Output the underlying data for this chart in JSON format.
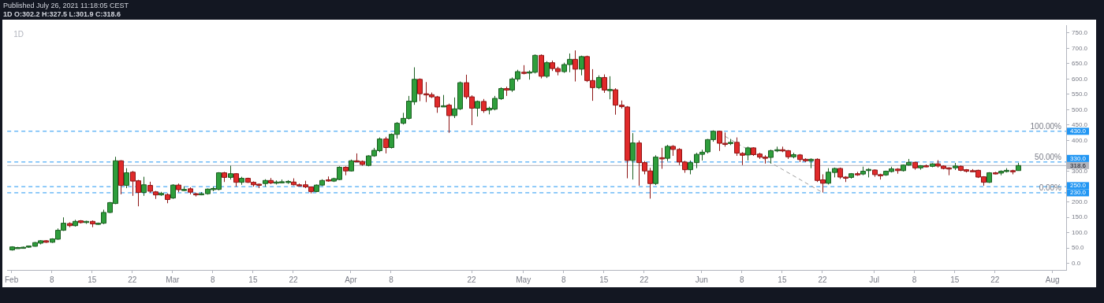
{
  "chart_data": {
    "type": "candlestick",
    "title": "1D",
    "annotations": [
      "Published July 26, 2021 11:18:05 CEST",
      "1D O:302.2 H:327.5 L:301.9 C:318.6",
      {
        "text": "100.00%",
        "y": 430
      },
      {
        "text": "50.00%",
        "y": 330
      },
      {
        "text": "0.00%",
        "y": 230
      }
    ],
    "x": [
      "2021-02-01",
      "2021-02-02",
      "2021-02-03",
      "2021-02-04",
      "2021-02-05",
      "2021-02-06",
      "2021-02-07",
      "2021-02-08",
      "2021-02-09",
      "2021-02-10",
      "2021-02-11",
      "2021-02-12",
      "2021-02-13",
      "2021-02-14",
      "2021-02-15",
      "2021-02-16",
      "2021-02-17",
      "2021-02-18",
      "2021-02-19",
      "2021-02-20",
      "2021-02-21",
      "2021-02-22",
      "2021-02-23",
      "2021-02-24",
      "2021-02-25",
      "2021-02-26",
      "2021-02-27",
      "2021-02-28",
      "2021-03-01",
      "2021-03-02",
      "2021-03-03",
      "2021-03-04",
      "2021-03-05",
      "2021-03-06",
      "2021-03-07",
      "2021-03-08",
      "2021-03-09",
      "2021-03-10",
      "2021-03-11",
      "2021-03-12",
      "2021-03-13",
      "2021-03-14",
      "2021-03-15",
      "2021-03-16",
      "2021-03-17",
      "2021-03-18",
      "2021-03-19",
      "2021-03-20",
      "2021-03-21",
      "2021-03-22",
      "2021-03-23",
      "2021-03-24",
      "2021-03-25",
      "2021-03-26",
      "2021-03-27",
      "2021-03-28",
      "2021-03-29",
      "2021-03-30",
      "2021-03-31",
      "2021-04-01",
      "2021-04-02",
      "2021-04-03",
      "2021-04-04",
      "2021-04-05",
      "2021-04-06",
      "2021-04-07",
      "2021-04-08",
      "2021-04-09",
      "2021-04-10",
      "2021-04-11",
      "2021-04-12",
      "2021-04-13",
      "2021-04-14",
      "2021-04-15",
      "2021-04-16",
      "2021-04-17",
      "2021-04-18",
      "2021-04-19",
      "2021-04-20",
      "2021-04-21",
      "2021-04-22",
      "2021-04-23",
      "2021-04-24",
      "2021-04-25",
      "2021-04-26",
      "2021-04-27",
      "2021-04-28",
      "2021-04-29",
      "2021-04-30",
      "2021-05-01",
      "2021-05-02",
      "2021-05-03",
      "2021-05-04",
      "2021-05-05",
      "2021-05-06",
      "2021-05-07",
      "2021-05-08",
      "2021-05-09",
      "2021-05-10",
      "2021-05-11",
      "2021-05-12",
      "2021-05-13",
      "2021-05-14",
      "2021-05-15",
      "2021-05-16",
      "2021-05-17",
      "2021-05-18",
      "2021-05-19",
      "2021-05-20",
      "2021-05-21",
      "2021-05-22",
      "2021-05-23",
      "2021-05-24",
      "2021-05-25",
      "2021-05-26",
      "2021-05-27",
      "2021-05-28",
      "2021-05-29",
      "2021-05-30",
      "2021-05-31",
      "2021-06-01",
      "2021-06-02",
      "2021-06-03",
      "2021-06-04",
      "2021-06-05",
      "2021-06-06",
      "2021-06-07",
      "2021-06-08",
      "2021-06-09",
      "2021-06-10",
      "2021-06-11",
      "2021-06-12",
      "2021-06-13",
      "2021-06-14",
      "2021-06-15",
      "2021-06-16",
      "2021-06-17",
      "2021-06-18",
      "2021-06-19",
      "2021-06-20",
      "2021-06-21",
      "2021-06-22",
      "2021-06-23",
      "2021-06-24",
      "2021-06-25",
      "2021-06-26",
      "2021-06-27",
      "2021-06-28",
      "2021-06-29",
      "2021-06-30",
      "2021-07-01",
      "2021-07-02",
      "2021-07-03",
      "2021-07-04",
      "2021-07-05",
      "2021-07-06",
      "2021-07-07",
      "2021-07-08",
      "2021-07-09",
      "2021-07-10",
      "2021-07-11",
      "2021-07-12",
      "2021-07-13",
      "2021-07-14",
      "2021-07-15",
      "2021-07-16",
      "2021-07-17",
      "2021-07-18",
      "2021-07-19",
      "2021-07-20",
      "2021-07-21",
      "2021-07-22",
      "2021-07-23",
      "2021-07-24",
      "2021-07-25",
      "2021-07-26"
    ],
    "ohlc": [
      [
        44,
        56,
        42,
        54
      ],
      [
        50,
        54,
        49,
        52
      ],
      [
        51,
        55,
        50,
        53
      ],
      [
        53,
        58,
        51,
        57
      ],
      [
        56,
        70,
        55,
        68
      ],
      [
        66,
        76,
        62,
        74
      ],
      [
        74,
        76,
        67,
        69
      ],
      [
        69,
        82,
        67,
        80
      ],
      [
        79,
        114,
        77,
        108
      ],
      [
        108,
        150,
        106,
        131
      ],
      [
        130,
        134,
        118,
        123
      ],
      [
        123,
        142,
        120,
        137
      ],
      [
        139,
        141,
        130,
        133
      ],
      [
        134,
        139,
        129,
        137
      ],
      [
        137,
        140,
        118,
        129
      ],
      [
        130,
        133,
        126,
        131
      ],
      [
        131,
        175,
        128,
        166
      ],
      [
        166,
        200,
        164,
        198
      ],
      [
        195,
        347,
        193,
        334
      ],
      [
        334,
        336,
        225,
        254
      ],
      [
        254,
        310,
        245,
        295
      ],
      [
        297,
        301,
        220,
        268
      ],
      [
        269,
        272,
        186,
        231
      ],
      [
        231,
        282,
        220,
        256
      ],
      [
        254,
        266,
        230,
        235
      ],
      [
        233,
        236,
        210,
        223
      ],
      [
        223,
        233,
        220,
        228
      ],
      [
        224,
        228,
        196,
        208
      ],
      [
        213,
        258,
        210,
        255
      ],
      [
        255,
        260,
        232,
        240
      ],
      [
        240,
        251,
        236,
        241
      ],
      [
        243,
        248,
        225,
        232
      ],
      [
        227,
        230,
        218,
        226
      ],
      [
        226,
        232,
        222,
        227
      ],
      [
        227,
        244,
        224,
        242
      ],
      [
        243,
        250,
        235,
        244
      ],
      [
        241,
        297,
        238,
        295
      ],
      [
        295,
        298,
        265,
        280
      ],
      [
        280,
        318,
        273,
        292
      ],
      [
        292,
        294,
        250,
        264
      ],
      [
        264,
        282,
        256,
        277
      ],
      [
        277,
        279,
        262,
        264
      ],
      [
        264,
        267,
        250,
        256
      ],
      [
        258,
        260,
        245,
        257
      ],
      [
        260,
        274,
        250,
        270
      ],
      [
        270,
        278,
        258,
        262
      ],
      [
        263,
        270,
        257,
        265
      ],
      [
        265,
        273,
        262,
        266
      ],
      [
        266,
        271,
        259,
        267
      ],
      [
        265,
        277,
        254,
        256
      ],
      [
        256,
        260,
        252,
        255
      ],
      [
        256,
        269,
        245,
        249
      ],
      [
        249,
        251,
        228,
        234
      ],
      [
        234,
        257,
        232,
        255
      ],
      [
        255,
        274,
        252,
        270
      ],
      [
        272,
        283,
        266,
        270
      ],
      [
        268,
        279,
        265,
        276
      ],
      [
        273,
        316,
        271,
        313
      ],
      [
        313,
        316,
        287,
        301
      ],
      [
        301,
        338,
        299,
        334
      ],
      [
        334,
        358,
        330,
        333
      ],
      [
        332,
        335,
        318,
        322
      ],
      [
        319,
        352,
        316,
        350
      ],
      [
        350,
        376,
        347,
        368
      ],
      [
        367,
        410,
        362,
        405
      ],
      [
        405,
        412,
        358,
        377
      ],
      [
        377,
        423,
        374,
        420
      ],
      [
        420,
        460,
        406,
        456
      ],
      [
        456,
        490,
        452,
        472
      ],
      [
        472,
        545,
        468,
        528
      ],
      [
        526,
        638,
        516,
        599
      ],
      [
        599,
        602,
        528,
        552
      ],
      [
        552,
        590,
        525,
        550
      ],
      [
        549,
        556,
        538,
        542
      ],
      [
        542,
        545,
        490,
        509
      ],
      [
        511,
        548,
        509,
        513
      ],
      [
        515,
        520,
        425,
        481
      ],
      [
        481,
        540,
        473,
        503
      ],
      [
        503,
        592,
        499,
        588
      ],
      [
        588,
        614,
        535,
        542
      ],
      [
        542,
        547,
        450,
        505
      ],
      [
        505,
        530,
        478,
        527
      ],
      [
        527,
        535,
        490,
        497
      ],
      [
        499,
        510,
        485,
        505
      ],
      [
        502,
        545,
        498,
        537
      ],
      [
        536,
        573,
        532,
        569
      ],
      [
        569,
        575,
        545,
        564
      ],
      [
        564,
        605,
        558,
        600
      ],
      [
        600,
        630,
        592,
        624
      ],
      [
        622,
        645,
        615,
        620
      ],
      [
        622,
        628,
        598,
        623
      ],
      [
        622,
        680,
        618,
        677
      ],
      [
        677,
        680,
        602,
        609
      ],
      [
        609,
        658,
        603,
        653
      ],
      [
        653,
        660,
        626,
        634
      ],
      [
        634,
        640,
        612,
        624
      ],
      [
        624,
        653,
        620,
        647
      ],
      [
        647,
        683,
        622,
        664
      ],
      [
        664,
        693,
        592,
        632
      ],
      [
        632,
        676,
        612,
        673
      ],
      [
        673,
        676,
        590,
        595
      ],
      [
        595,
        632,
        529,
        572
      ],
      [
        572,
        612,
        567,
        605
      ],
      [
        605,
        615,
        555,
        564
      ],
      [
        565,
        609,
        534,
        566
      ],
      [
        565,
        570,
        484,
        515
      ],
      [
        515,
        530,
        504,
        510
      ],
      [
        509,
        512,
        277,
        335
      ],
      [
        335,
        424,
        273,
        392
      ],
      [
        392,
        400,
        253,
        328
      ],
      [
        328,
        333,
        290,
        301
      ],
      [
        301,
        311,
        211,
        260
      ],
      [
        260,
        352,
        255,
        346
      ],
      [
        344,
        376,
        308,
        343
      ],
      [
        342,
        386,
        333,
        381
      ],
      [
        381,
        385,
        350,
        371
      ],
      [
        371,
        375,
        320,
        330
      ],
      [
        330,
        334,
        295,
        305
      ],
      [
        305,
        335,
        290,
        328
      ],
      [
        328,
        360,
        310,
        355
      ],
      [
        355,
        370,
        335,
        362
      ],
      [
        363,
        405,
        358,
        403
      ],
      [
        403,
        433,
        396,
        430
      ],
      [
        430,
        432,
        366,
        391
      ],
      [
        391,
        426,
        380,
        389
      ],
      [
        390,
        405,
        385,
        394
      ],
      [
        394,
        410,
        350,
        359
      ],
      [
        358,
        362,
        320,
        352
      ],
      [
        353,
        380,
        335,
        376
      ],
      [
        376,
        378,
        350,
        354
      ],
      [
        356,
        360,
        340,
        346
      ],
      [
        346,
        352,
        325,
        345
      ],
      [
        345,
        370,
        325,
        367
      ],
      [
        368,
        380,
        362,
        370
      ],
      [
        370,
        380,
        362,
        366
      ],
      [
        367,
        369,
        340,
        347
      ],
      [
        347,
        360,
        342,
        354
      ],
      [
        353,
        356,
        330,
        338
      ],
      [
        339,
        342,
        330,
        334
      ],
      [
        334,
        342,
        310,
        339
      ],
      [
        339,
        342,
        265,
        270
      ],
      [
        272,
        290,
        231,
        261
      ],
      [
        261,
        310,
        257,
        297
      ],
      [
        296,
        312,
        280,
        309
      ],
      [
        309,
        312,
        275,
        281
      ],
      [
        281,
        284,
        265,
        280
      ],
      [
        280,
        294,
        276,
        292
      ],
      [
        292,
        298,
        285,
        291
      ],
      [
        291,
        315,
        287,
        300
      ],
      [
        303,
        310,
        280,
        306
      ],
      [
        304,
        306,
        282,
        289
      ],
      [
        289,
        292,
        273,
        288
      ],
      [
        288,
        302,
        285,
        300
      ],
      [
        299,
        315,
        296,
        308
      ],
      [
        307,
        310,
        292,
        302
      ],
      [
        302,
        322,
        299,
        320
      ],
      [
        320,
        340,
        318,
        329
      ],
      [
        329,
        331,
        305,
        311
      ],
      [
        311,
        320,
        305,
        318
      ],
      [
        318,
        322,
        313,
        317
      ],
      [
        316,
        326,
        313,
        324
      ],
      [
        324,
        336,
        312,
        317
      ],
      [
        317,
        319,
        306,
        309
      ],
      [
        311,
        313,
        287,
        310
      ],
      [
        311,
        327,
        304,
        317
      ],
      [
        316,
        319,
        300,
        303
      ],
      [
        305,
        307,
        296,
        300
      ],
      [
        302,
        307,
        298,
        301
      ],
      [
        303,
        305,
        278,
        281
      ],
      [
        282,
        284,
        253,
        264
      ],
      [
        264,
        297,
        262,
        295
      ],
      [
        295,
        298,
        290,
        294
      ],
      [
        294,
        303,
        287,
        300
      ],
      [
        299,
        310,
        296,
        303
      ],
      [
        302,
        305,
        290,
        301
      ],
      [
        302.2,
        327.5,
        301.9,
        318.6
      ]
    ],
    "series": [
      {
        "type": "line",
        "x": [
          "2021-06-04",
          "2021-06-22"
        ],
        "values": [
          425,
          231
        ],
        "color": "#9e9e9e",
        "line_style": "dashed"
      }
    ],
    "ref_lines": [
      {
        "axis": "y",
        "value": 430,
        "label": "430.0",
        "color": "#2196f3",
        "line_style": "dashed"
      },
      {
        "axis": "y",
        "value": 330,
        "label": "330.0",
        "color": "#2196f3",
        "line_style": "dashed"
      },
      {
        "axis": "y",
        "value": 318.6,
        "label": "318.6",
        "color": "#b2b5be",
        "line_style": "solid"
      },
      {
        "axis": "y",
        "value": 250,
        "label": "250.0",
        "color": "#2196f3",
        "line_style": "dashed"
      },
      {
        "axis": "y",
        "value": 230,
        "label": "230.0",
        "color": "#2196f3",
        "line_style": "dashed"
      }
    ],
    "xlim": [
      "2021-01-31T06:00",
      "2021-08-03T09:00"
    ],
    "xticks": [
      {
        "value": "2021-02-01",
        "label": "Feb"
      },
      {
        "value": "2021-02-08",
        "label": "8"
      },
      {
        "value": "2021-02-15",
        "label": "15"
      },
      {
        "value": "2021-02-22",
        "label": "22"
      },
      {
        "value": "2021-03-01",
        "label": "Mar"
      },
      {
        "value": "2021-03-08",
        "label": "8"
      },
      {
        "value": "2021-03-15",
        "label": "15"
      },
      {
        "value": "2021-03-22",
        "label": "22"
      },
      {
        "value": "2021-04-01",
        "label": "Apr"
      },
      {
        "value": "2021-04-08",
        "label": "8"
      },
      {
        "value": "2021-04-22",
        "label": "22"
      },
      {
        "value": "2021-05-01",
        "label": "May"
      },
      {
        "value": "2021-05-08",
        "label": "8"
      },
      {
        "value": "2021-05-15",
        "label": "15"
      },
      {
        "value": "2021-05-22",
        "label": "22"
      },
      {
        "value": "2021-06-01",
        "label": "Jun"
      },
      {
        "value": "2021-06-08",
        "label": "8"
      },
      {
        "value": "2021-06-15",
        "label": "15"
      },
      {
        "value": "2021-06-22",
        "label": "22"
      },
      {
        "value": "2021-07-01",
        "label": "Jul"
      },
      {
        "value": "2021-07-08",
        "label": "8"
      },
      {
        "value": "2021-07-15",
        "label": "15"
      },
      {
        "value": "2021-07-22",
        "label": "22"
      },
      {
        "value": "2021-08-01",
        "label": "Aug"
      }
    ],
    "ylim": [
      -21,
      773
    ],
    "yticks": [
      {
        "value": 0,
        "label": "0.0"
      },
      {
        "value": 50,
        "label": "50.0"
      },
      {
        "value": 100,
        "label": "100.0"
      },
      {
        "value": 150,
        "label": "150.0"
      },
      {
        "value": 200,
        "label": "200.0"
      },
      {
        "value": 250,
        "label": null
      },
      {
        "value": 300,
        "label": "300.0"
      },
      {
        "value": 400,
        "label": "400.0"
      },
      {
        "value": 450,
        "label": "450.0"
      },
      {
        "value": 500,
        "label": "500.0"
      },
      {
        "value": 550,
        "label": "550.0"
      },
      {
        "value": 600,
        "label": "600.0"
      },
      {
        "value": 650,
        "label": "650.0"
      },
      {
        "value": 700,
        "label": "700.0"
      },
      {
        "value": 750,
        "label": "750.0"
      }
    ],
    "grid": false,
    "legend": false
  }
}
